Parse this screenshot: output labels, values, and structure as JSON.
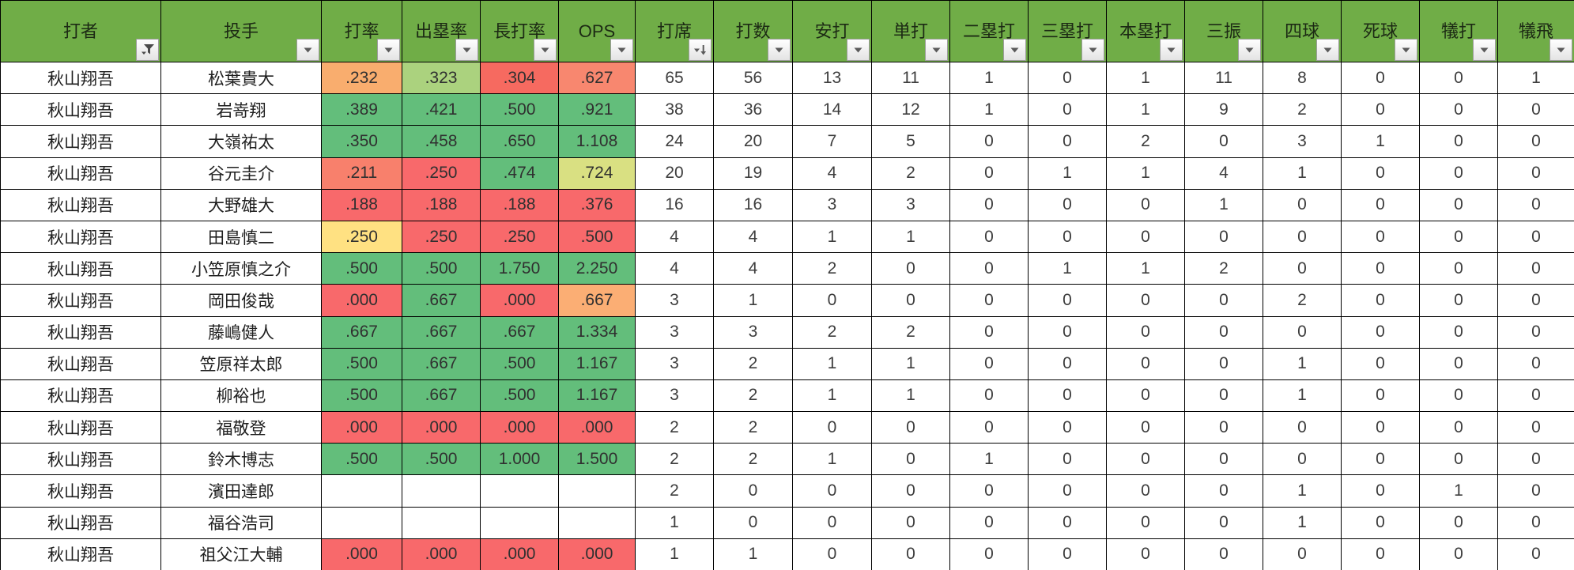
{
  "colors": {
    "header_bg": "#70AD47",
    "grid_line": "#000000",
    "scale_red": "#F8696B",
    "scale_green": "#63BE7B",
    "scale_yellow": "#FFE182",
    "filter_button_bg": "#F2F2F2"
  },
  "table": {
    "columns": [
      {
        "key": "batter",
        "label": "打者",
        "filter": "funnel"
      },
      {
        "key": "pitcher",
        "label": "投手",
        "filter": "dropdown"
      },
      {
        "key": "avg",
        "label": "打率",
        "filter": "dropdown"
      },
      {
        "key": "obp",
        "label": "出塁率",
        "filter": "dropdown"
      },
      {
        "key": "slg",
        "label": "長打率",
        "filter": "dropdown"
      },
      {
        "key": "ops",
        "label": "OPS",
        "filter": "dropdown"
      },
      {
        "key": "pa",
        "label": "打席",
        "filter": "sort-desc"
      },
      {
        "key": "ab",
        "label": "打数",
        "filter": "dropdown"
      },
      {
        "key": "h",
        "label": "安打",
        "filter": "dropdown"
      },
      {
        "key": "single",
        "label": "単打",
        "filter": "dropdown"
      },
      {
        "key": "double",
        "label": "二塁打",
        "filter": "dropdown"
      },
      {
        "key": "triple",
        "label": "三塁打",
        "filter": "dropdown"
      },
      {
        "key": "hr",
        "label": "本塁打",
        "filter": "dropdown"
      },
      {
        "key": "so",
        "label": "三振",
        "filter": "dropdown"
      },
      {
        "key": "bb",
        "label": "四球",
        "filter": "dropdown"
      },
      {
        "key": "hbp",
        "label": "死球",
        "filter": "dropdown"
      },
      {
        "key": "sac",
        "label": "犠打",
        "filter": "dropdown"
      },
      {
        "key": "sf",
        "label": "犠飛",
        "filter": "dropdown"
      }
    ],
    "rows": [
      {
        "batter": "秋山翔吾",
        "pitcher": "松葉貴大",
        "stats": [
          {
            "v": ".232",
            "bg": "#F9AD6E"
          },
          {
            "v": ".323",
            "bg": "#ABD27E"
          },
          {
            "v": ".304",
            "bg": "#F66A60"
          },
          {
            "v": ".627",
            "bg": "#F8876F"
          }
        ],
        "nums": [
          "65",
          "56",
          "13",
          "11",
          "1",
          "0",
          "1",
          "11",
          "8",
          "0",
          "0",
          "1"
        ]
      },
      {
        "batter": "秋山翔吾",
        "pitcher": "岩嵜翔",
        "stats": [
          {
            "v": ".389",
            "bg": "#63BE7B"
          },
          {
            "v": ".421",
            "bg": "#63BE7B"
          },
          {
            "v": ".500",
            "bg": "#63BE7B"
          },
          {
            "v": ".921",
            "bg": "#63BE7B"
          }
        ],
        "nums": [
          "38",
          "36",
          "14",
          "12",
          "1",
          "0",
          "1",
          "9",
          "2",
          "0",
          "0",
          "0"
        ]
      },
      {
        "batter": "秋山翔吾",
        "pitcher": "大嶺祐太",
        "stats": [
          {
            "v": ".350",
            "bg": "#63BE7B"
          },
          {
            "v": ".458",
            "bg": "#63BE7B"
          },
          {
            "v": ".650",
            "bg": "#63BE7B"
          },
          {
            "v": "1.108",
            "bg": "#63BE7B"
          }
        ],
        "nums": [
          "24",
          "20",
          "7",
          "5",
          "0",
          "0",
          "2",
          "0",
          "3",
          "1",
          "0",
          "0"
        ]
      },
      {
        "batter": "秋山翔吾",
        "pitcher": "谷元圭介",
        "stats": [
          {
            "v": ".211",
            "bg": "#F8806C"
          },
          {
            "v": ".250",
            "bg": "#F8696B"
          },
          {
            "v": ".474",
            "bg": "#63BE7B"
          },
          {
            "v": ".724",
            "bg": "#D9E082"
          }
        ],
        "nums": [
          "20",
          "19",
          "4",
          "2",
          "0",
          "1",
          "1",
          "4",
          "1",
          "0",
          "0",
          "0"
        ]
      },
      {
        "batter": "秋山翔吾",
        "pitcher": "大野雄大",
        "stats": [
          {
            "v": ".188",
            "bg": "#F8696B"
          },
          {
            "v": ".188",
            "bg": "#F8696B"
          },
          {
            "v": ".188",
            "bg": "#F8696B"
          },
          {
            "v": ".376",
            "bg": "#F8696B"
          }
        ],
        "nums": [
          "16",
          "16",
          "3",
          "3",
          "0",
          "0",
          "0",
          "1",
          "0",
          "0",
          "0",
          "0"
        ]
      },
      {
        "batter": "秋山翔吾",
        "pitcher": "田島慎二",
        "stats": [
          {
            "v": ".250",
            "bg": "#FFE182"
          },
          {
            "v": ".250",
            "bg": "#F8696B"
          },
          {
            "v": ".250",
            "bg": "#F8696B"
          },
          {
            "v": ".500",
            "bg": "#F8696B"
          }
        ],
        "nums": [
          "4",
          "4",
          "1",
          "1",
          "0",
          "0",
          "0",
          "0",
          "0",
          "0",
          "0",
          "0"
        ]
      },
      {
        "batter": "秋山翔吾",
        "pitcher": "小笠原慎之介",
        "stats": [
          {
            "v": ".500",
            "bg": "#63BE7B"
          },
          {
            "v": ".500",
            "bg": "#63BE7B"
          },
          {
            "v": "1.750",
            "bg": "#63BE7B"
          },
          {
            "v": "2.250",
            "bg": "#63BE7B"
          }
        ],
        "nums": [
          "4",
          "4",
          "2",
          "0",
          "0",
          "1",
          "1",
          "2",
          "0",
          "0",
          "0",
          "0"
        ]
      },
      {
        "batter": "秋山翔吾",
        "pitcher": "岡田俊哉",
        "stats": [
          {
            "v": ".000",
            "bg": "#F8696B"
          },
          {
            "v": ".667",
            "bg": "#63BE7B"
          },
          {
            "v": ".000",
            "bg": "#F8696B"
          },
          {
            "v": ".667",
            "bg": "#FBAE74"
          }
        ],
        "nums": [
          "3",
          "1",
          "0",
          "0",
          "0",
          "0",
          "0",
          "0",
          "2",
          "0",
          "0",
          "0"
        ]
      },
      {
        "batter": "秋山翔吾",
        "pitcher": "藤嶋健人",
        "stats": [
          {
            "v": ".667",
            "bg": "#63BE7B"
          },
          {
            "v": ".667",
            "bg": "#63BE7B"
          },
          {
            "v": ".667",
            "bg": "#63BE7B"
          },
          {
            "v": "1.334",
            "bg": "#63BE7B"
          }
        ],
        "nums": [
          "3",
          "3",
          "2",
          "2",
          "0",
          "0",
          "0",
          "0",
          "0",
          "0",
          "0",
          "0"
        ]
      },
      {
        "batter": "秋山翔吾",
        "pitcher": "笠原祥太郎",
        "stats": [
          {
            "v": ".500",
            "bg": "#63BE7B"
          },
          {
            "v": ".667",
            "bg": "#63BE7B"
          },
          {
            "v": ".500",
            "bg": "#63BE7B"
          },
          {
            "v": "1.167",
            "bg": "#63BE7B"
          }
        ],
        "nums": [
          "3",
          "2",
          "1",
          "1",
          "0",
          "0",
          "0",
          "0",
          "1",
          "0",
          "0",
          "0"
        ]
      },
      {
        "batter": "秋山翔吾",
        "pitcher": "柳裕也",
        "stats": [
          {
            "v": ".500",
            "bg": "#63BE7B"
          },
          {
            "v": ".667",
            "bg": "#63BE7B"
          },
          {
            "v": ".500",
            "bg": "#63BE7B"
          },
          {
            "v": "1.167",
            "bg": "#63BE7B"
          }
        ],
        "nums": [
          "3",
          "2",
          "1",
          "1",
          "0",
          "0",
          "0",
          "0",
          "1",
          "0",
          "0",
          "0"
        ]
      },
      {
        "batter": "秋山翔吾",
        "pitcher": "福敬登",
        "stats": [
          {
            "v": ".000",
            "bg": "#F8696B"
          },
          {
            "v": ".000",
            "bg": "#F8696B"
          },
          {
            "v": ".000",
            "bg": "#F8696B"
          },
          {
            "v": ".000",
            "bg": "#F8696B"
          }
        ],
        "nums": [
          "2",
          "2",
          "0",
          "0",
          "0",
          "0",
          "0",
          "0",
          "0",
          "0",
          "0",
          "0"
        ]
      },
      {
        "batter": "秋山翔吾",
        "pitcher": "鈴木博志",
        "stats": [
          {
            "v": ".500",
            "bg": "#63BE7B"
          },
          {
            "v": ".500",
            "bg": "#63BE7B"
          },
          {
            "v": "1.000",
            "bg": "#63BE7B"
          },
          {
            "v": "1.500",
            "bg": "#63BE7B"
          }
        ],
        "nums": [
          "2",
          "2",
          "1",
          "0",
          "1",
          "0",
          "0",
          "0",
          "0",
          "0",
          "0",
          "0"
        ]
      },
      {
        "batter": "秋山翔吾",
        "pitcher": "濱田達郎",
        "stats": [
          {
            "v": "",
            "bg": ""
          },
          {
            "v": "",
            "bg": ""
          },
          {
            "v": "",
            "bg": ""
          },
          {
            "v": "",
            "bg": ""
          }
        ],
        "nums": [
          "2",
          "0",
          "0",
          "0",
          "0",
          "0",
          "0",
          "0",
          "1",
          "0",
          "1",
          "0"
        ]
      },
      {
        "batter": "秋山翔吾",
        "pitcher": "福谷浩司",
        "stats": [
          {
            "v": "",
            "bg": ""
          },
          {
            "v": "",
            "bg": ""
          },
          {
            "v": "",
            "bg": ""
          },
          {
            "v": "",
            "bg": ""
          }
        ],
        "nums": [
          "1",
          "0",
          "0",
          "0",
          "0",
          "0",
          "0",
          "0",
          "1",
          "0",
          "0",
          "0"
        ]
      },
      {
        "batter": "秋山翔吾",
        "pitcher": "祖父江大輔",
        "stats": [
          {
            "v": ".000",
            "bg": "#F8696B"
          },
          {
            "v": ".000",
            "bg": "#F8696B"
          },
          {
            "v": ".000",
            "bg": "#F8696B"
          },
          {
            "v": ".000",
            "bg": "#F8696B"
          }
        ],
        "nums": [
          "1",
          "1",
          "0",
          "0",
          "0",
          "0",
          "0",
          "0",
          "0",
          "0",
          "0",
          "0"
        ]
      }
    ]
  }
}
